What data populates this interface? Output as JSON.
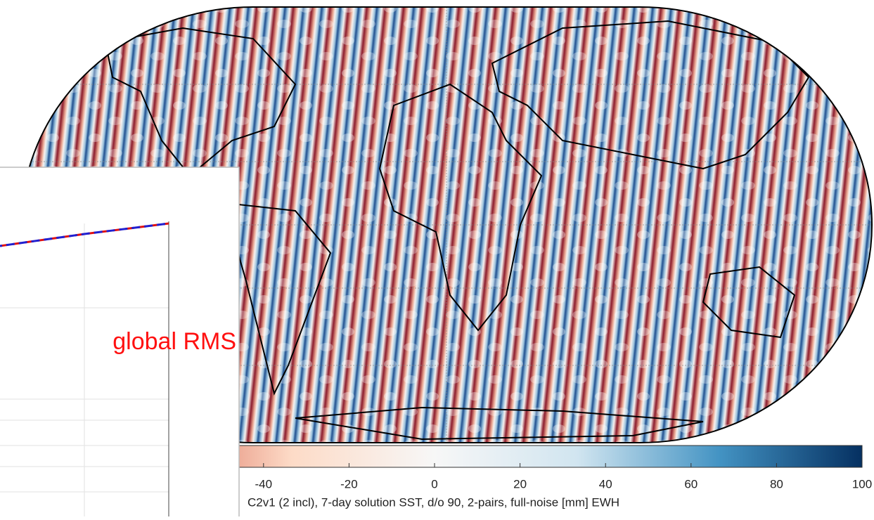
{
  "colorbar": {
    "lim": [
      -100,
      100
    ],
    "ticks": [
      -40,
      -20,
      0,
      20,
      40,
      60,
      80,
      100
    ],
    "label": "C2v1 (2 incl), 7-day solution SST, d/o 90, 2-pairs, full-noise [mm] EWH",
    "colors": [
      "#67001f",
      "#d6604d",
      "#fddbc7",
      "#f7f7f7",
      "#d1e5f0",
      "#4393c3",
      "#053061"
    ]
  },
  "inset": {
    "text": "global RMS"
  }
}
